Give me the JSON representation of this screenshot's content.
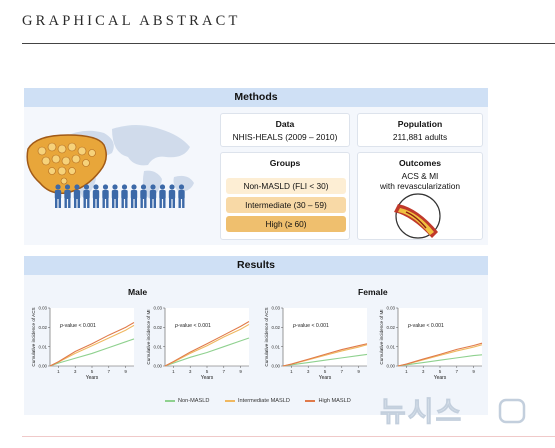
{
  "header": {
    "title": "GRAPHICAL ABSTRACT"
  },
  "methods": {
    "heading": "Methods",
    "data_card": {
      "title": "Data",
      "value": "NHIS-HEALS (2009 – 2010)"
    },
    "population_card": {
      "title": "Population",
      "value": "211,881 adults"
    },
    "groups_card": {
      "title": "Groups",
      "items": [
        "Non-MASLD (FLI < 30)",
        "Intermediate (30 – 59)",
        "High (≥ 60)"
      ]
    },
    "outcomes_card": {
      "title": "Outcomes",
      "line1": "ACS & MI",
      "line2": "with revascularization"
    },
    "icons": [
      "liver-icon",
      "world-map-icon",
      "people-group-icon",
      "artery-plaque-icon"
    ]
  },
  "results": {
    "heading": "Results",
    "male_label": "Male",
    "female_label": "Female",
    "p_value_text": "p-value < 0.001",
    "xlabel": "Years",
    "legend": [
      "Non-MASLD",
      "Intermediate MASLD",
      "High MASLD"
    ],
    "colors": {
      "non": "#8fd18f",
      "intermediate": "#f0b860",
      "high": "#e07a4a"
    }
  },
  "chart_data": [
    {
      "type": "line",
      "title": "Male",
      "ylabel": "Cumulative incidence of ACS",
      "xlabel": "Years",
      "xticks": [
        1,
        3,
        5,
        7,
        9
      ],
      "yticks": [
        "0.00",
        "0.01",
        "0.02",
        "0.03"
      ],
      "ylim": [
        0,
        0.03
      ],
      "x": [
        0,
        1,
        3,
        5,
        7,
        9,
        10
      ],
      "series": [
        {
          "name": "Non-MASLD",
          "values": [
            0,
            0.0015,
            0.004,
            0.0065,
            0.0095,
            0.0125,
            0.014
          ]
        },
        {
          "name": "Intermediate MASLD",
          "values": [
            0,
            0.002,
            0.0065,
            0.0105,
            0.0145,
            0.0185,
            0.021
          ]
        },
        {
          "name": "High MASLD",
          "values": [
            0,
            0.0022,
            0.0075,
            0.0115,
            0.016,
            0.02,
            0.0225
          ]
        }
      ],
      "annotation": "p-value < 0.001"
    },
    {
      "type": "line",
      "title": "Male",
      "ylabel": "Cumulative incidence of MI",
      "xlabel": "Years",
      "xticks": [
        1,
        3,
        5,
        7,
        9
      ],
      "yticks": [
        "0.00",
        "0.01",
        "0.02",
        "0.03"
      ],
      "ylim": [
        0,
        0.03
      ],
      "x": [
        0,
        1,
        3,
        5,
        7,
        9,
        10
      ],
      "series": [
        {
          "name": "Non-MASLD",
          "values": [
            0,
            0.0015,
            0.0045,
            0.007,
            0.01,
            0.013,
            0.0145
          ]
        },
        {
          "name": "Intermediate MASLD",
          "values": [
            0,
            0.002,
            0.0065,
            0.0105,
            0.015,
            0.019,
            0.0215
          ]
        },
        {
          "name": "High MASLD",
          "values": [
            0,
            0.0023,
            0.0072,
            0.0115,
            0.016,
            0.0205,
            0.023
          ]
        }
      ],
      "annotation": "p-value < 0.001"
    },
    {
      "type": "line",
      "title": "Female",
      "ylabel": "Cumulative incidence of ACS",
      "xlabel": "Years",
      "xticks": [
        1,
        3,
        5,
        7,
        9
      ],
      "yticks": [
        "0.00",
        "0.01",
        "0.02",
        "0.03"
      ],
      "ylim": [
        0,
        0.03
      ],
      "x": [
        0,
        1,
        3,
        5,
        7,
        9,
        10
      ],
      "series": [
        {
          "name": "Non-MASLD",
          "values": [
            0,
            0.0006,
            0.0018,
            0.003,
            0.0042,
            0.0054,
            0.006
          ]
        },
        {
          "name": "Intermediate MASLD",
          "values": [
            0,
            0.0009,
            0.0032,
            0.0055,
            0.0078,
            0.0098,
            0.011
          ]
        },
        {
          "name": "High MASLD",
          "values": [
            0,
            0.001,
            0.0035,
            0.006,
            0.0085,
            0.0105,
            0.0115
          ]
        }
      ],
      "annotation": "p-value < 0.001"
    },
    {
      "type": "line",
      "title": "Female",
      "ylabel": "Cumulative incidence of MI",
      "xlabel": "Years",
      "xticks": [
        1,
        3,
        5,
        7,
        9
      ],
      "yticks": [
        "0.00",
        "0.01",
        "0.02",
        "0.03"
      ],
      "ylim": [
        0,
        0.03
      ],
      "x": [
        0,
        1,
        3,
        5,
        7,
        9,
        10
      ],
      "series": [
        {
          "name": "Non-MASLD",
          "values": [
            0,
            0.0006,
            0.0018,
            0.003,
            0.0042,
            0.0054,
            0.0058
          ]
        },
        {
          "name": "Intermediate MASLD",
          "values": [
            0,
            0.0009,
            0.0032,
            0.0055,
            0.0078,
            0.0098,
            0.011
          ]
        },
        {
          "name": "High MASLD",
          "values": [
            0,
            0.001,
            0.0036,
            0.006,
            0.0086,
            0.0106,
            0.0118
          ]
        }
      ],
      "annotation": "p-value < 0.001"
    }
  ],
  "watermark": {
    "text": "뉴시스"
  }
}
